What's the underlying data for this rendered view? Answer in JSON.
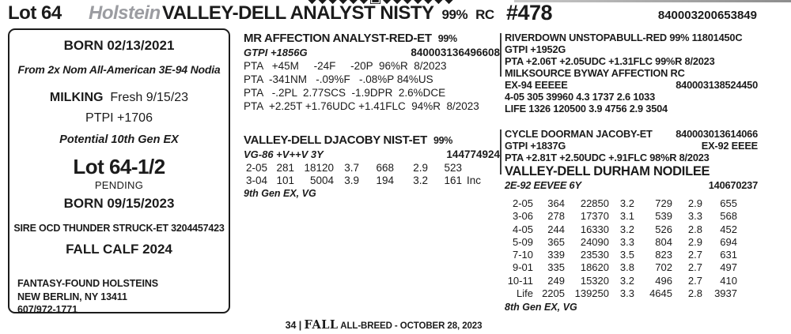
{
  "colors": {
    "text": "#1b1b1b",
    "breed_gray": "#9b9ca1",
    "rule_gray": "#9a9a9a"
  },
  "ornament": {
    "left": "◆◆◆◆◆◆",
    "center": "▣",
    "right": "◆◆◆◆◆◆◆"
  },
  "header": {
    "lot": "Lot 64",
    "breed": "Holstein",
    "name": "VALLEY-DELL ANALYST NISTY",
    "pct": "99%",
    "rc": "RC",
    "number": "#478",
    "id": "840003200653849"
  },
  "info_box": {
    "born1": "BORN  02/13/2021",
    "note1": "From 2x Nom All-American 3E-94 Nodia",
    "milking_label": "MILKING",
    "milking_value": "  Fresh 9/15/23",
    "ptpi": "PTPI +1706",
    "potential": "Potential 10th Gen EX",
    "lot2": "Lot 64-1/2",
    "pending": "PENDING",
    "born2": "BORN  09/15/2023",
    "sire_line": "SIRE OCD THUNDER STRUCK-ET  3204457423",
    "fall_calf": "FALL CALF 2024",
    "consignor": {
      "name": "FANTASY-FOUND HOLSTEINS",
      "address": "NEW BERLIN, NY  13411",
      "phone": "607/972-1771"
    }
  },
  "pedigree": {
    "sire": {
      "name": "MR AFFECTION ANALYST-RED-ET",
      "pct": "99%",
      "gtpi": "GTPI +1856G",
      "id": "840003136496608",
      "pta_lines": [
        "PTA   +45M     -24F     -20P  96%R  8/2023",
        "PTA  -341NM   -.09%F   -.08%P 84%US",
        "PTA   -.2PL  2.77SCS  -1.9DPR  2.6%DCE",
        "PTA  +2.25T +1.76UDC +1.41FLC  94%R  8/2023"
      ]
    },
    "dam": {
      "name": "VALLEY-DELL DJACOBY NIST-ET",
      "pct": "99%",
      "score": "VG-86 +V++V 3Y",
      "id": "144774924",
      "rows": [
        [
          "2-05",
          "281",
          "18120",
          "3.7",
          "668",
          "2.9",
          "523",
          ""
        ],
        [
          "3-04",
          "101",
          "5004",
          "3.9",
          "194",
          "3.2",
          "161",
          "Inc"
        ]
      ],
      "note": "9th Gen EX, VG"
    },
    "sire_sire": {
      "line1": "RIVERDOWN UNSTOPABULL-RED  99%  11801450C",
      "gtpi": "GTPI +1952G",
      "pta": "PTA  +2.06T +2.05UDC +1.31FLC  99%R  8/2023"
    },
    "sire_dam": {
      "name": "MILKSOURCE BYWAY AFFECTION  RC",
      "score": "EX-94 EEEEE",
      "id": "840003138524450",
      "prod1": "4-05  305  39960  4.3 1737 2.6 1033",
      "prod2": "LIFE 1326 120500 3.9 4756 2.9 3504"
    },
    "dam_sire": {
      "name": "CYCLE DOORMAN JACOBY-ET",
      "id": "840003013614066",
      "gtpi": "GTPI +1837G",
      "score": "EX-92 EEEE",
      "pta": "PTA  +2.81T +2.50UDC  +.91FLC  98%R  8/2023"
    },
    "dam_dam": {
      "name": "VALLEY-DELL DURHAM NODILEE",
      "score": "2E-92 EEVEE 6Y",
      "id": "140670237",
      "rows": [
        [
          "2-05",
          "364",
          "22850",
          "3.2",
          "729",
          "2.9",
          "655"
        ],
        [
          "3-06",
          "278",
          "17370",
          "3.1",
          "539",
          "3.3",
          "568"
        ],
        [
          "4-05",
          "244",
          "16330",
          "3.2",
          "526",
          "2.8",
          "452"
        ],
        [
          "5-09",
          "365",
          "24090",
          "3.3",
          "804",
          "2.9",
          "694"
        ],
        [
          "7-10",
          "339",
          "23530",
          "3.5",
          "823",
          "2.7",
          "631"
        ],
        [
          "9-01",
          "335",
          "18620",
          "3.8",
          "702",
          "2.7",
          "497"
        ],
        [
          "10-11",
          "249",
          "15320",
          "3.2",
          "496",
          "2.7",
          "410"
        ],
        [
          "Life",
          "2205",
          "139250",
          "3.3",
          "4645",
          "2.8",
          "3937"
        ]
      ],
      "note": "8th Gen EX, VG"
    }
  },
  "footer": {
    "page_num": "34",
    "sep": " | ",
    "brand": "FALL",
    "rest": " ALL-BREED - OCTOBER 28, 2023"
  }
}
